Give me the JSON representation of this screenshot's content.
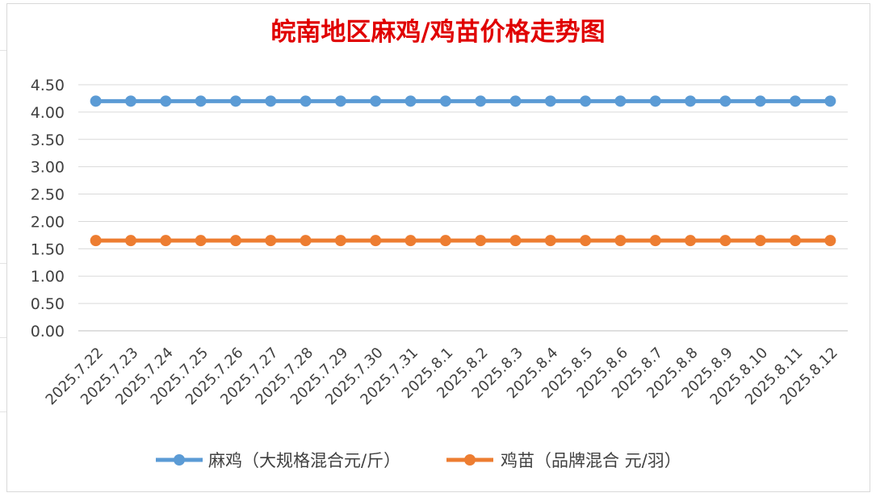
{
  "chart_data": {
    "type": "line",
    "title": "皖南地区麻鸡/鸡苗价格走势图",
    "categories": [
      "2025.7.22",
      "2025.7.23",
      "2025.7.24",
      "2025.7.25",
      "2025.7.26",
      "2025.7.27",
      "2025.7.28",
      "2025.7.29",
      "2025.7.30",
      "2025.7.31",
      "2025.8.1",
      "2025.8.2",
      "2025.8.3",
      "2025.8.4",
      "2025.8.5",
      "2025.8.6",
      "2025.8.7",
      "2025.8.8",
      "2025.8.9",
      "2025.8.10",
      "2025.8.11",
      "2025.8.12"
    ],
    "ylim": [
      0,
      4.5
    ],
    "yticks": [
      "0.00",
      "0.50",
      "1.00",
      "1.50",
      "2.00",
      "2.50",
      "3.00",
      "3.50",
      "4.00",
      "4.50"
    ],
    "grid": true,
    "legend_position": "bottom",
    "series": [
      {
        "name": "麻鸡（大规格混合元/斤）",
        "color": "#5b9bd5",
        "values": [
          4.2,
          4.2,
          4.2,
          4.2,
          4.2,
          4.2,
          4.2,
          4.2,
          4.2,
          4.2,
          4.2,
          4.2,
          4.2,
          4.2,
          4.2,
          4.2,
          4.2,
          4.2,
          4.2,
          4.2,
          4.2,
          4.2
        ]
      },
      {
        "name": "鸡苗（品牌混合 元/羽）",
        "color": "#ed7d31",
        "values": [
          1.65,
          1.65,
          1.65,
          1.65,
          1.65,
          1.65,
          1.65,
          1.65,
          1.65,
          1.65,
          1.65,
          1.65,
          1.65,
          1.65,
          1.65,
          1.65,
          1.65,
          1.65,
          1.65,
          1.65,
          1.65,
          1.65
        ]
      }
    ]
  }
}
